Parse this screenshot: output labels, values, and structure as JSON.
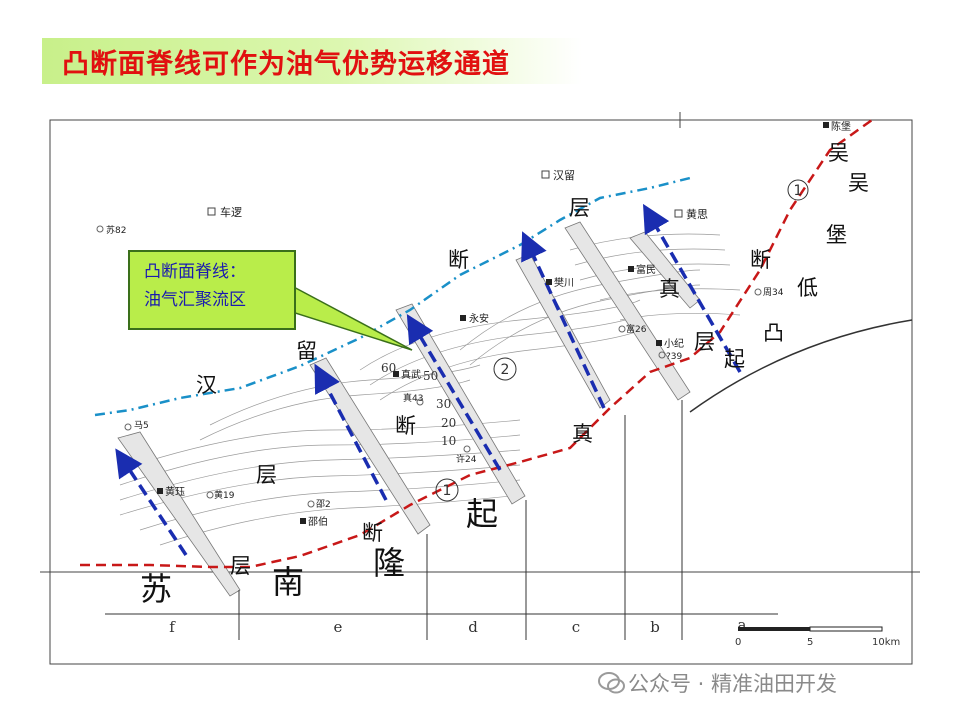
{
  "title": "凸断面脊线可作为油气优势运移通道",
  "callout": {
    "line1": "凸断面脊线：",
    "line2": "油气汇聚流区"
  },
  "region_labels": {
    "han": "汉",
    "liu": "留",
    "duan": "断",
    "ceng": "层",
    "zhen1": "真",
    "zhen2": "真",
    "wu1": "吴",
    "wu2": "吴",
    "bao": "堡",
    "di": "低",
    "tu": "凸",
    "duan2": "断",
    "duan3": "断",
    "ceng2": "层",
    "ceng3": "层",
    "ceng4": "层",
    "qi1": "起",
    "qi2": "起",
    "long": "隆",
    "su": "苏",
    "nan": "南",
    "duan4": "断"
  },
  "places": {
    "chelv": "车逻",
    "hanliu": "汉留",
    "huangsi": "黄思",
    "chenbao": "陈堡",
    "yongan": "永安",
    "zhenwu": "真武",
    "zhen43": "真43",
    "xu24": "许24",
    "su82": "苏82",
    "ma5": "马5",
    "huangjue": "黄珏",
    "huang19": "黄19",
    "shao2": "邵2",
    "shaobo": "邵伯",
    "zhouzhuang": "富民",
    "gao26": "富26",
    "xiaoji": "小纪",
    "zhou34": "周34",
    "qi9": "?39",
    "huangchuan": "樊川"
  },
  "contours": {
    "c60": "60",
    "c50": "50",
    "c30": "30",
    "c20": "20",
    "c10": "10"
  },
  "circles": {
    "one_a": "1",
    "two": "2",
    "one_b": "1"
  },
  "sections": {
    "f": "f",
    "e": "e",
    "d": "d",
    "c": "c",
    "b": "b",
    "a": "a"
  },
  "scale": {
    "s0": "0",
    "s5": "5",
    "s10": "10km"
  },
  "watermark": "公众号 · 精准油田开发",
  "colors": {
    "title": "#e11010",
    "blue_line": "#1a90c8",
    "red_line": "#c81818",
    "arrow": "#1a2db0",
    "callout_bg": "#b9ed4a"
  }
}
